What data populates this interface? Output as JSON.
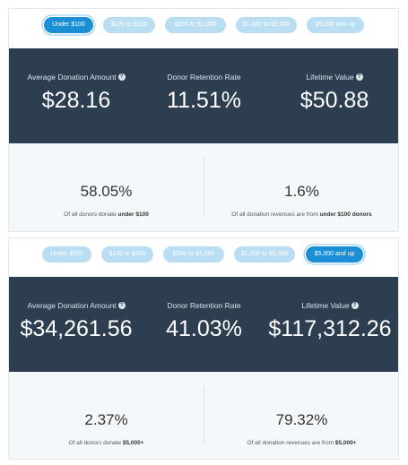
{
  "panels": [
    {
      "tabs": [
        {
          "label": "Under $100",
          "active": true
        },
        {
          "label": "$100 to $250",
          "active": false
        },
        {
          "label": "$250 to $1,000",
          "active": false
        },
        {
          "label": "$1,000 to $5,000",
          "active": false
        },
        {
          "label": "$5,000 and up",
          "active": false
        }
      ],
      "stats": {
        "avg_label": "Average Donation Amount",
        "avg_value": "$28.16",
        "retention_label": "Donor Retention Rate",
        "retention_value": "11.51%",
        "lifetime_label": "Lifetime Value",
        "lifetime_value": "$50.88"
      },
      "bottom": {
        "left_value": "58.05%",
        "left_caption_prefix": "Of all donors donate ",
        "left_caption_bold": "under $100",
        "right_value": "1.6%",
        "right_caption_prefix": "Of all donation revenues are from ",
        "right_caption_bold": "under $100 donors"
      }
    },
    {
      "tabs": [
        {
          "label": "Under $100",
          "active": false
        },
        {
          "label": "$100 to $250",
          "active": false
        },
        {
          "label": "$250 to $1,000",
          "active": false
        },
        {
          "label": "$1,000 to $5,000",
          "active": false
        },
        {
          "label": "$5,000 and up",
          "active": true
        }
      ],
      "stats": {
        "avg_label": "Average Donation Amount",
        "avg_value": "$34,261.56",
        "retention_label": "Donor Retention Rate",
        "retention_value": "41.03%",
        "lifetime_label": "Lifetime Value",
        "lifetime_value": "$117,312.26"
      },
      "bottom": {
        "left_value": "2.37%",
        "left_caption_prefix": "Of all donors donate ",
        "left_caption_bold": "$5,000+",
        "right_value": "79.32%",
        "right_caption_prefix": "Of all donation revenues are from ",
        "right_caption_bold": "$5,000+"
      }
    }
  ],
  "help_icon_glyph": "?",
  "colors": {
    "tab_active": "#1b8fd6",
    "tab_inactive": "#b9def3",
    "stats_bg": "#2d3e50",
    "bottom_bg": "#f5f8fa"
  }
}
